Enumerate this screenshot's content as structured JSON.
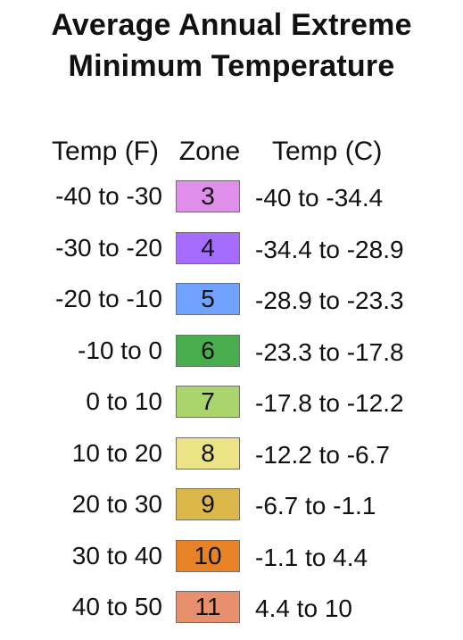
{
  "title": {
    "line1": "Average Annual Extreme",
    "line2": "Minimum Temperature"
  },
  "headers": {
    "temp_f": "Temp (F)",
    "zone": "Zone",
    "temp_c": "Temp (C)"
  },
  "rows": [
    {
      "temp_f": "-40 to -30",
      "zone": "3",
      "temp_c": "-40 to -34.4",
      "color": "#df8eea"
    },
    {
      "temp_f": "-30 to -20",
      "zone": "4",
      "temp_c": "-34.4 to -28.9",
      "color": "#a66cff"
    },
    {
      "temp_f": "-20 to -10",
      "zone": "5",
      "temp_c": "-28.9 to -23.3",
      "color": "#70a2ff"
    },
    {
      "temp_f": "-10 to 0",
      "zone": "6",
      "temp_c": "-23.3 to -17.8",
      "color": "#48ad4c"
    },
    {
      "temp_f": "0 to 10",
      "zone": "7",
      "temp_c": "-17.8 to -12.2",
      "color": "#aad46c"
    },
    {
      "temp_f": "10 to 20",
      "zone": "8",
      "temp_c": "-12.2 to -6.7",
      "color": "#ece286"
    },
    {
      "temp_f": "20 to 30",
      "zone": "9",
      "temp_c": "-6.7 to -1.1",
      "color": "#dcb84a"
    },
    {
      "temp_f": "30 to 40",
      "zone": "10",
      "temp_c": "-1.1 to 4.4",
      "color": "#e88226"
    },
    {
      "temp_f": "40 to 50",
      "zone": "11",
      "temp_c": "4.4 to 10",
      "color": "#e8906e"
    }
  ]
}
